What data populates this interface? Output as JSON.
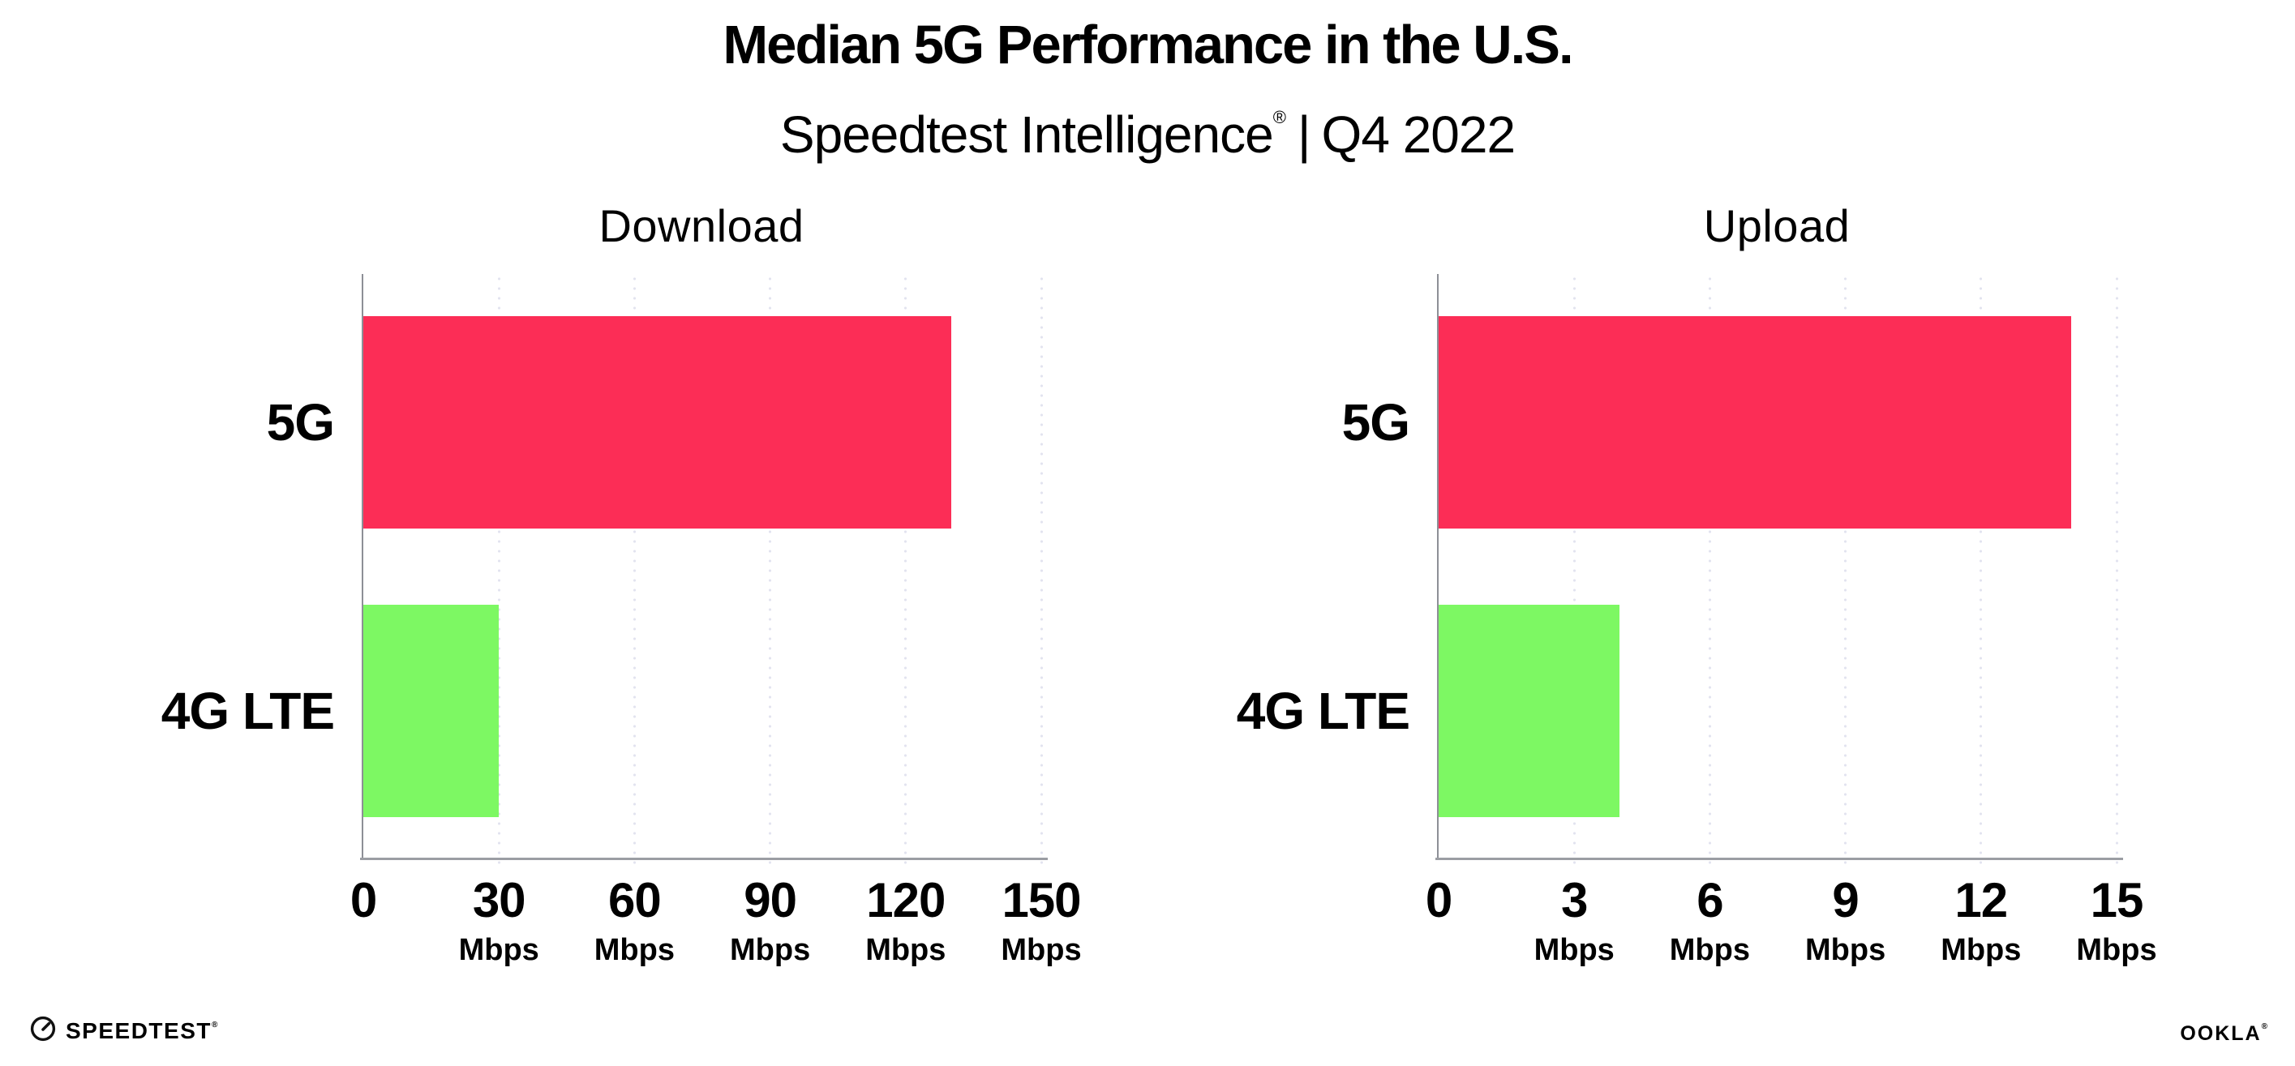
{
  "header": {
    "title": "Median 5G Performance in the U.S.",
    "subtitle_brand": "Speedtest Intelligence",
    "subtitle_reg": "®",
    "subtitle_sep": "|",
    "subtitle_period": "Q4 2022"
  },
  "chart_data": [
    {
      "type": "bar",
      "orientation": "horizontal",
      "title": "Download",
      "categories": [
        "5G",
        "4G LTE"
      ],
      "values": [
        130,
        30
      ],
      "unit": "Mbps",
      "xlabel": "",
      "ylabel": "",
      "xlim": [
        0,
        150
      ],
      "xticks": [
        0,
        30,
        60,
        90,
        120,
        150
      ],
      "series_colors": [
        "#FC2D56",
        "#7DF863"
      ],
      "grid": "dotted-vertical",
      "legend": "none"
    },
    {
      "type": "bar",
      "orientation": "horizontal",
      "title": "Upload",
      "categories": [
        "5G",
        "4G LTE"
      ],
      "values": [
        14,
        4
      ],
      "unit": "Mbps",
      "xlabel": "",
      "ylabel": "",
      "xlim": [
        0,
        15
      ],
      "xticks": [
        0,
        3,
        6,
        9,
        12,
        15
      ],
      "series_colors": [
        "#FC2D56",
        "#7DF863"
      ],
      "grid": "dotted-vertical",
      "legend": "none"
    }
  ],
  "footer": {
    "speedtest_label": "SPEEDTEST",
    "speedtest_reg": "®",
    "ookla_label": "OOKLA",
    "ookla_reg": "®"
  },
  "colors": {
    "bar_5g": "#FC2D56",
    "bar_4g_lte": "#7DF863",
    "axis": "#9b9da3",
    "grid_dots": "#e2e3ef",
    "text": "#000000",
    "background": "#FFFFFF"
  }
}
